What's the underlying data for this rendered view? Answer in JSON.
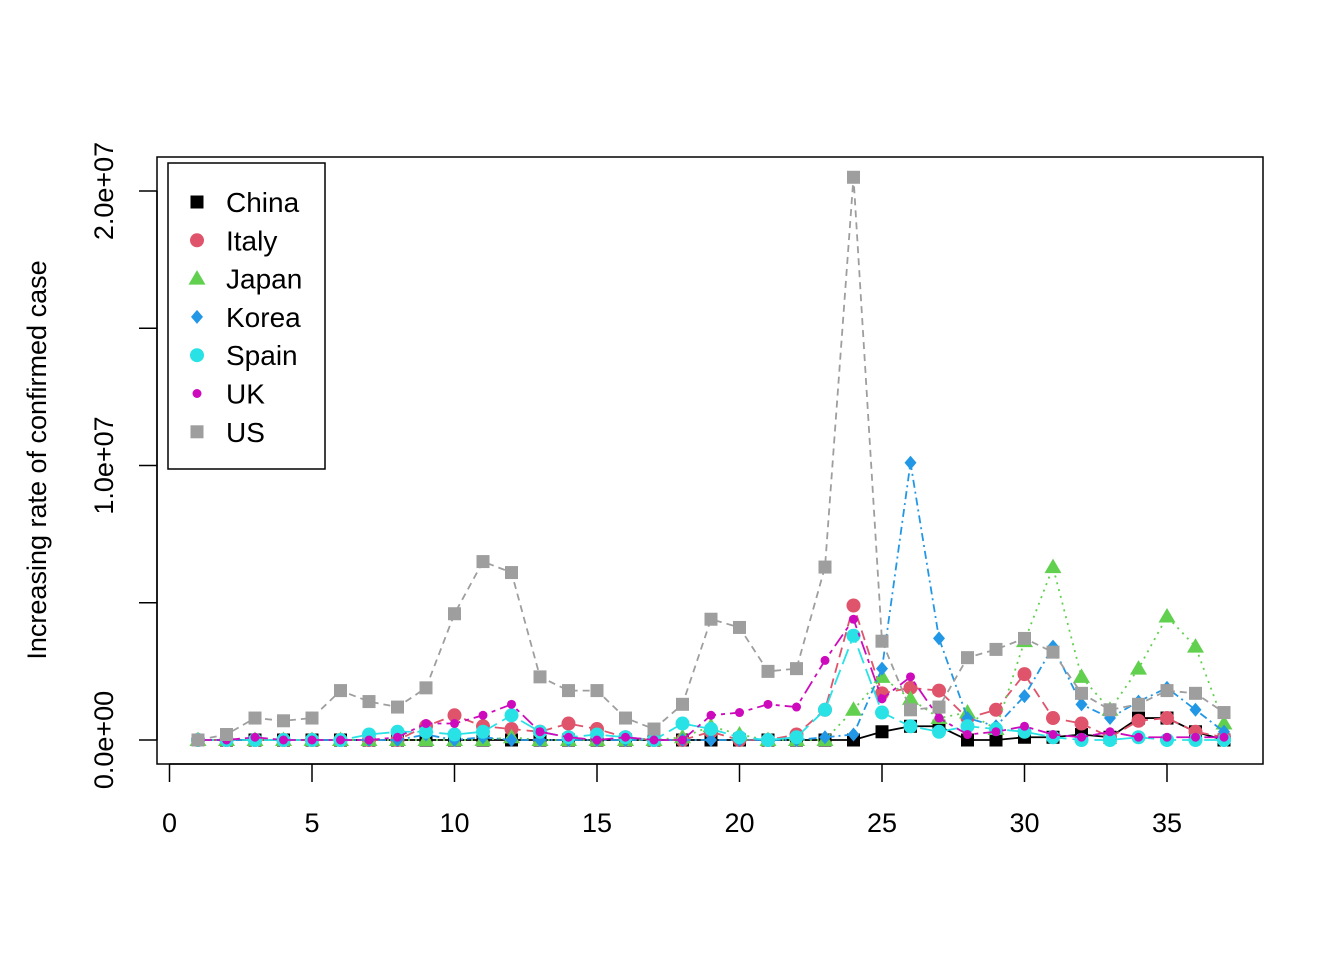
{
  "chart_data": {
    "type": "scatter",
    "title": "",
    "xlabel": "",
    "ylabel": "Increasing rate of confirmed case",
    "xlim": [
      0,
      37
    ],
    "ylim": [
      0,
      20000000
    ],
    "x_ticks": [
      "0",
      "5",
      "10",
      "15",
      "20",
      "25",
      "30",
      "35"
    ],
    "y_ticks": [
      "0.0e+00",
      "1.0e+07",
      "2.0e+07"
    ],
    "grid": false,
    "legend_position": "top-left",
    "x": [
      1,
      2,
      3,
      4,
      5,
      6,
      7,
      8,
      9,
      10,
      11,
      12,
      13,
      14,
      15,
      16,
      17,
      18,
      19,
      20,
      21,
      22,
      23,
      24,
      25,
      26,
      27,
      28,
      29,
      30,
      31,
      32,
      33,
      34,
      35,
      36,
      37
    ],
    "series": [
      {
        "name": "China",
        "color": "#000000",
        "marker": "square",
        "dash": "",
        "values": [
          0,
          0,
          0,
          0,
          0,
          0,
          0,
          0,
          0,
          0,
          0,
          0,
          0,
          0,
          0,
          0,
          0,
          0,
          0,
          0,
          0,
          0,
          0,
          0,
          300000,
          500000,
          500000,
          0,
          0,
          100000,
          100000,
          200000,
          100000,
          800000,
          800000,
          300000,
          0
        ]
      },
      {
        "name": "Italy",
        "color": "#DF536B",
        "marker": "circle",
        "dash": "10 6",
        "values": [
          0,
          0,
          0,
          0,
          0,
          0,
          0,
          0,
          500000,
          900000,
          500000,
          400000,
          300000,
          600000,
          400000,
          100000,
          0,
          0,
          300000,
          0,
          0,
          200000,
          1100000,
          4900000,
          1700000,
          1900000,
          1800000,
          800000,
          1100000,
          2400000,
          800000,
          600000,
          100000,
          700000,
          800000,
          300000,
          100000
        ]
      },
      {
        "name": "Japan",
        "color": "#61D04F",
        "marker": "triangle",
        "dash": "2 5",
        "values": [
          0,
          0,
          0,
          0,
          0,
          0,
          0,
          0,
          0,
          0,
          0,
          100000,
          0,
          0,
          0,
          0,
          0,
          100000,
          500000,
          200000,
          0,
          0,
          0,
          1100000,
          2300000,
          1500000,
          800000,
          1000000,
          400000,
          3600000,
          6300000,
          2300000,
          1100000,
          2600000,
          4500000,
          3400000,
          600000
        ]
      },
      {
        "name": "Korea",
        "color": "#2297E6",
        "marker": "diamond",
        "dash": "8 4 2 4",
        "values": [
          0,
          0,
          0,
          0,
          0,
          0,
          0,
          0,
          200000,
          0,
          100000,
          0,
          0,
          0,
          0,
          0,
          0,
          0,
          0,
          0,
          0,
          0,
          100000,
          200000,
          2600000,
          10100000,
          3700000,
          800000,
          500000,
          1600000,
          3400000,
          1300000,
          800000,
          1400000,
          1900000,
          1100000,
          300000
        ]
      },
      {
        "name": "Spain",
        "color": "#28E2E5",
        "marker": "circle",
        "dash": "16 6",
        "values": [
          0,
          0,
          0,
          0,
          0,
          0,
          200000,
          300000,
          300000,
          200000,
          300000,
          900000,
          300000,
          100000,
          200000,
          100000,
          0,
          600000,
          400000,
          100000,
          0,
          100000,
          1100000,
          3800000,
          1000000,
          500000,
          300000,
          500000,
          400000,
          300000,
          100000,
          0,
          0,
          100000,
          0,
          0,
          0
        ]
      },
      {
        "name": "UK",
        "color": "#CD0BBC",
        "marker": "dot",
        "dash": "14 5 4 5",
        "values": [
          0,
          0,
          100000,
          0,
          0,
          0,
          0,
          100000,
          600000,
          600000,
          900000,
          1300000,
          300000,
          100000,
          0,
          100000,
          0,
          0,
          900000,
          1000000,
          1300000,
          1200000,
          2900000,
          4400000,
          1500000,
          2300000,
          800000,
          200000,
          300000,
          500000,
          200000,
          100000,
          300000,
          100000,
          100000,
          100000,
          100000
        ]
      },
      {
        "name": "US",
        "color": "#9E9E9E",
        "marker": "square",
        "dash": "7 5",
        "values": [
          0,
          200000,
          800000,
          700000,
          800000,
          1800000,
          1400000,
          1200000,
          1900000,
          4600000,
          6500000,
          6100000,
          2300000,
          1800000,
          1800000,
          800000,
          400000,
          1300000,
          4400000,
          4100000,
          2500000,
          2600000,
          6300000,
          20500000,
          3600000,
          1100000,
          1200000,
          3000000,
          3300000,
          3700000,
          3200000,
          1700000,
          1100000,
          1300000,
          1800000,
          1700000,
          1000000
        ]
      }
    ]
  }
}
